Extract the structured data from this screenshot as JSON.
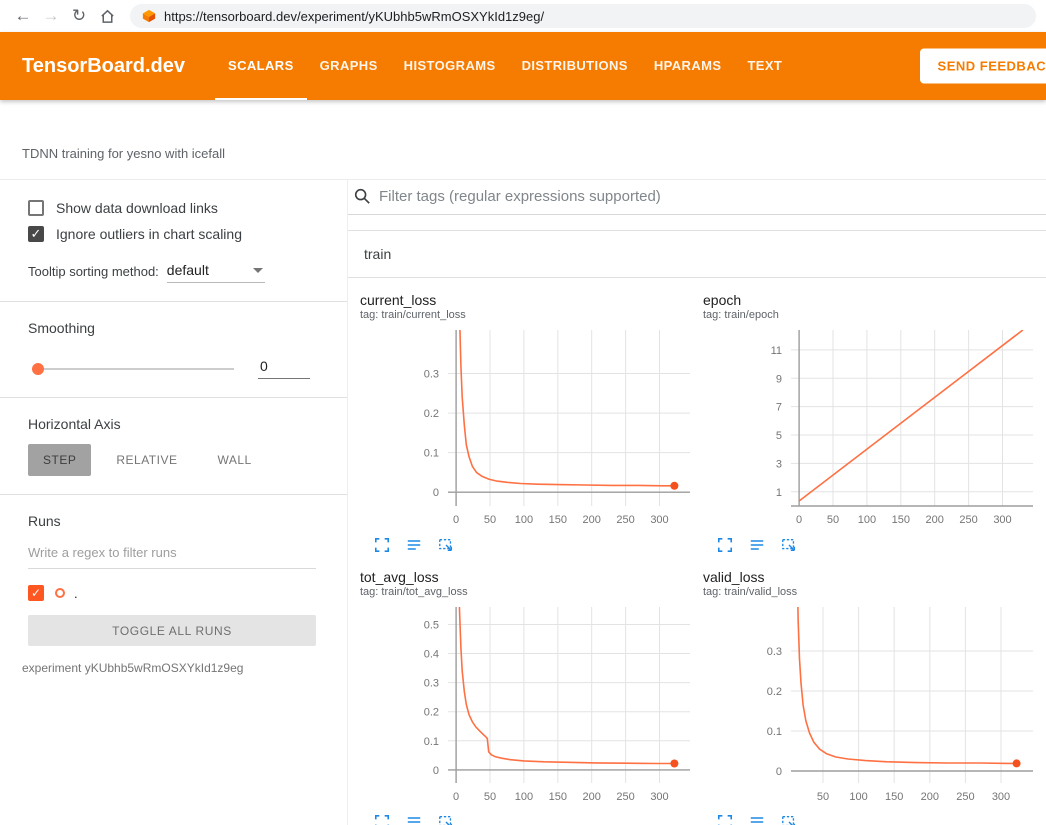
{
  "browser": {
    "url": "https://tensorboard.dev/experiment/yKUbhb5wRmOSXYkId1z9eg/"
  },
  "icons": {
    "back": "←",
    "forward": "→",
    "reload": "↻",
    "check": "✓"
  },
  "header": {
    "logo": "TensorBoard.dev",
    "tabs": [
      {
        "label": "SCALARS",
        "active": true
      },
      {
        "label": "GRAPHS",
        "active": false
      },
      {
        "label": "HISTOGRAMS",
        "active": false
      },
      {
        "label": "DISTRIBUTIONS",
        "active": false
      },
      {
        "label": "HPARAMS",
        "active": false
      },
      {
        "label": "TEXT",
        "active": false
      }
    ],
    "feedback_button": "SEND FEEDBACK"
  },
  "experiment": {
    "title": "TDNN training for yesno with icefall",
    "caption": "experiment yKUbhb5wRmOSXYkId1z9eg"
  },
  "sidebar": {
    "show_download_label": "Show data download links",
    "ignore_outliers_label": "Ignore outliers in chart scaling",
    "tooltip_label": "Tooltip sorting method:",
    "tooltip_value": "default",
    "smoothing_label": "Smoothing",
    "smoothing_value": "0",
    "axis_label": "Horizontal Axis",
    "axis_options": [
      "STEP",
      "RELATIVE",
      "WALL"
    ],
    "runs_label": "Runs",
    "runs_filter_placeholder": "Write a regex to filter runs",
    "run_name": ".",
    "toggle_all_label": "TOGGLE ALL RUNS"
  },
  "main": {
    "filter_placeholder": "Filter tags (regular expressions supported)",
    "group_label": "train"
  },
  "colors": {
    "accent": "#f57c00",
    "series": "#ff7043",
    "series_dot": "#f4511e",
    "grid": "#e3e3e3",
    "zero_line": "#9e9e9e",
    "icon_blue": "#1e88e5"
  },
  "chart_data": [
    {
      "type": "line",
      "name": "current_loss",
      "tag": "tag: train/current_loss",
      "xlim": [
        -12,
        345
      ],
      "ylim": [
        -0.035,
        0.41
      ],
      "x_ticks": [
        0,
        50,
        100,
        150,
        200,
        250,
        300
      ],
      "y_ticks": [
        0,
        0.1,
        0.2,
        0.3
      ],
      "points": [
        [
          3,
          0.75
        ],
        [
          5,
          0.45
        ],
        [
          7,
          0.32
        ],
        [
          9,
          0.24
        ],
        [
          12,
          0.17
        ],
        [
          15,
          0.12
        ],
        [
          19,
          0.09
        ],
        [
          24,
          0.065
        ],
        [
          30,
          0.05
        ],
        [
          38,
          0.04
        ],
        [
          48,
          0.033
        ],
        [
          60,
          0.028
        ],
        [
          75,
          0.025
        ],
        [
          95,
          0.022
        ],
        [
          120,
          0.02
        ],
        [
          150,
          0.019
        ],
        [
          190,
          0.018
        ],
        [
          230,
          0.017
        ],
        [
          270,
          0.017
        ],
        [
          305,
          0.016
        ],
        [
          322,
          0.016
        ]
      ],
      "endpoint": [
        322,
        0.016
      ]
    },
    {
      "type": "line",
      "name": "epoch",
      "tag": "tag: train/epoch",
      "xlim": [
        -12,
        345
      ],
      "ylim": [
        0,
        12.4
      ],
      "x_ticks": [
        0,
        50,
        100,
        150,
        200,
        250,
        300
      ],
      "y_ticks": [
        1,
        3,
        5,
        7,
        9,
        11
      ],
      "points": [
        [
          0,
          0.35
        ],
        [
          330,
          12.4
        ]
      ],
      "endpoint": null
    },
    {
      "type": "line",
      "name": "tot_avg_loss",
      "tag": "tag: train/tot_avg_loss",
      "xlim": [
        -12,
        345
      ],
      "ylim": [
        -0.045,
        0.56
      ],
      "x_ticks": [
        0,
        50,
        100,
        150,
        200,
        250,
        300
      ],
      "y_ticks": [
        0,
        0.1,
        0.2,
        0.3,
        0.4,
        0.5
      ],
      "points": [
        [
          3,
          0.8
        ],
        [
          5,
          0.55
        ],
        [
          7,
          0.42
        ],
        [
          9,
          0.34
        ],
        [
          12,
          0.27
        ],
        [
          15,
          0.225
        ],
        [
          19,
          0.19
        ],
        [
          24,
          0.165
        ],
        [
          29,
          0.148
        ],
        [
          35,
          0.133
        ],
        [
          40,
          0.122
        ],
        [
          44,
          0.113
        ],
        [
          46,
          0.108
        ],
        [
          48,
          0.062
        ],
        [
          52,
          0.052
        ],
        [
          58,
          0.045
        ],
        [
          68,
          0.04
        ],
        [
          80,
          0.035
        ],
        [
          100,
          0.031
        ],
        [
          130,
          0.028
        ],
        [
          165,
          0.026
        ],
        [
          205,
          0.024
        ],
        [
          250,
          0.023
        ],
        [
          295,
          0.022
        ],
        [
          322,
          0.022
        ]
      ],
      "endpoint": [
        322,
        0.022
      ]
    },
    {
      "type": "line",
      "name": "valid_loss",
      "tag": "tag: train/valid_loss",
      "xlim": [
        5,
        345
      ],
      "ylim": [
        -0.03,
        0.41
      ],
      "x_ticks": [
        50,
        100,
        150,
        200,
        250,
        300
      ],
      "y_ticks": [
        0,
        0.1,
        0.2,
        0.3
      ],
      "points": [
        [
          13,
          0.8
        ],
        [
          14,
          0.5
        ],
        [
          15,
          0.38
        ],
        [
          17,
          0.28
        ],
        [
          19,
          0.22
        ],
        [
          22,
          0.165
        ],
        [
          26,
          0.125
        ],
        [
          31,
          0.095
        ],
        [
          37,
          0.072
        ],
        [
          45,
          0.055
        ],
        [
          55,
          0.043
        ],
        [
          68,
          0.035
        ],
        [
          85,
          0.03
        ],
        [
          110,
          0.026
        ],
        [
          140,
          0.023
        ],
        [
          180,
          0.021
        ],
        [
          225,
          0.02
        ],
        [
          270,
          0.02
        ],
        [
          310,
          0.019
        ],
        [
          322,
          0.019
        ]
      ],
      "endpoint": [
        322,
        0.019
      ]
    }
  ]
}
